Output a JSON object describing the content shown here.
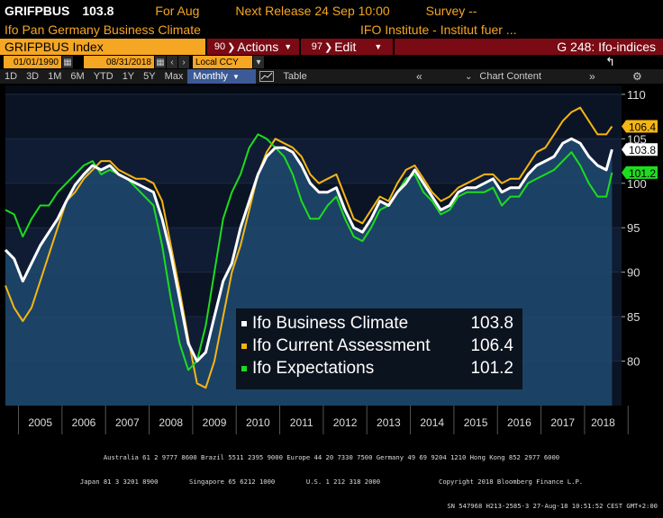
{
  "header": {
    "ticker": "GRIFPBUS",
    "last_value": "103.8",
    "for_label": "For Aug",
    "next_release": "Next Release 24 Sep 10:00",
    "survey": "Survey --",
    "title": "Ifo Pan Germany Business Climate",
    "source": "IFO Institute - Institut fuer ..."
  },
  "toolbar": {
    "security": "GRIFPBUS Index",
    "actions_label": "Actions",
    "actions_key": "90",
    "edit_label": "Edit",
    "edit_key": "97",
    "page_label": "G 248: Ifo-indices",
    "start_date": "01/01/1990",
    "end_date": "08/31/2018",
    "currency": "Local CCY",
    "ranges": [
      "1D",
      "3D",
      "1M",
      "6M",
      "YTD",
      "1Y",
      "5Y",
      "Max"
    ],
    "frequency": "Monthly",
    "table_label": "Table",
    "chart_content_label": "Chart Content"
  },
  "footer": {
    "line1": "Australia 61 2 9777 8600 Brazil 5511 2395 9000 Europe 44 20 7330 7500 Germany 49 69 9204 1210 Hong Kong 852 2977 6000",
    "line2": "Japan 81 3 3201 8900        Singapore 65 6212 1000        U.S. 1 212 318 2000               Copyright 2018 Bloomberg Finance L.P.",
    "line3": "SN 547968 H213-2585-3 27-Aug-18 10:51:52 CEST GMT+2:00"
  },
  "chart_data": {
    "type": "line",
    "title": "Ifo Pan Germany Business Climate",
    "xlim": [
      2004.7,
      2018.85
    ],
    "ylim": [
      75,
      111
    ],
    "yticks": [
      80,
      85,
      90,
      95,
      100,
      105,
      110
    ],
    "xtick_labels": [
      "2005",
      "2006",
      "2007",
      "2008",
      "2009",
      "2010",
      "2011",
      "2012",
      "2013",
      "2014",
      "2015",
      "2016",
      "2017",
      "2018"
    ],
    "series": [
      {
        "name": "Ifo Business Climate",
        "last": "103.8",
        "color": "#ffffff",
        "x": [
          2004.7,
          2004.9,
          2005.1,
          2005.3,
          2005.5,
          2005.7,
          2005.9,
          2006.1,
          2006.3,
          2006.5,
          2006.7,
          2006.9,
          2007.1,
          2007.3,
          2007.5,
          2007.7,
          2007.9,
          2008.1,
          2008.3,
          2008.5,
          2008.7,
          2008.9,
          2009.1,
          2009.3,
          2009.5,
          2009.7,
          2009.9,
          2010.1,
          2010.3,
          2010.5,
          2010.7,
          2010.9,
          2011.1,
          2011.3,
          2011.5,
          2011.7,
          2011.9,
          2012.1,
          2012.3,
          2012.5,
          2012.7,
          2012.9,
          2013.1,
          2013.3,
          2013.5,
          2013.7,
          2013.9,
          2014.1,
          2014.3,
          2014.5,
          2014.7,
          2014.9,
          2015.1,
          2015.3,
          2015.5,
          2015.7,
          2015.9,
          2016.1,
          2016.3,
          2016.5,
          2016.7,
          2016.9,
          2017.1,
          2017.3,
          2017.5,
          2017.7,
          2017.9,
          2018.1,
          2018.3,
          2018.5,
          2018.63
        ],
        "y": [
          92.5,
          91.5,
          89,
          91,
          93,
          94.5,
          96,
          98,
          99.8,
          101,
          102,
          101.5,
          102,
          101,
          100.5,
          100,
          99.5,
          99,
          96,
          92,
          87,
          82,
          80,
          81,
          85,
          89,
          91,
          95,
          98,
          101,
          103,
          104,
          104,
          103.5,
          102,
          100,
          99,
          99,
          99.5,
          97,
          95,
          94.5,
          96,
          98,
          97.5,
          99,
          100,
          101.5,
          100,
          98.5,
          97,
          97.5,
          99,
          99.5,
          99.5,
          100,
          100.5,
          99,
          99.5,
          99.5,
          101,
          102,
          102.5,
          103,
          104.5,
          105,
          104.5,
          103,
          102,
          101.5,
          103.8
        ]
      },
      {
        "name": "Ifo Current Assessment",
        "last": "106.4",
        "color": "#f5b514",
        "x": [
          2004.7,
          2004.9,
          2005.1,
          2005.3,
          2005.5,
          2005.7,
          2005.9,
          2006.1,
          2006.3,
          2006.5,
          2006.7,
          2006.9,
          2007.1,
          2007.3,
          2007.5,
          2007.7,
          2007.9,
          2008.1,
          2008.3,
          2008.5,
          2008.7,
          2008.9,
          2009.1,
          2009.3,
          2009.5,
          2009.7,
          2009.9,
          2010.1,
          2010.3,
          2010.5,
          2010.7,
          2010.9,
          2011.1,
          2011.3,
          2011.5,
          2011.7,
          2011.9,
          2012.1,
          2012.3,
          2012.5,
          2012.7,
          2012.9,
          2013.1,
          2013.3,
          2013.5,
          2013.7,
          2013.9,
          2014.1,
          2014.3,
          2014.5,
          2014.7,
          2014.9,
          2015.1,
          2015.3,
          2015.5,
          2015.7,
          2015.9,
          2016.1,
          2016.3,
          2016.5,
          2016.7,
          2016.9,
          2017.1,
          2017.3,
          2017.5,
          2017.7,
          2017.9,
          2018.1,
          2018.3,
          2018.5,
          2018.63
        ],
        "y": [
          88.5,
          86,
          84.5,
          86,
          89,
          92,
          95,
          98,
          99,
          100.5,
          101.5,
          102.5,
          102.5,
          101.5,
          101,
          100.5,
          100.5,
          100,
          98,
          93,
          88,
          82.5,
          77.5,
          77,
          80,
          85,
          90,
          93,
          97,
          101,
          103.5,
          105,
          104.5,
          104,
          103,
          101,
          100,
          100.5,
          101,
          98.5,
          96,
          95.5,
          97,
          98.5,
          98,
          100,
          101.5,
          102,
          100.5,
          99,
          98,
          98.5,
          99.5,
          100,
          100.5,
          101,
          101,
          100,
          100.5,
          100.5,
          102,
          103.5,
          104,
          105.5,
          107,
          108,
          108.5,
          107,
          105.5,
          105.5,
          106.4
        ]
      },
      {
        "name": "Ifo Expectations",
        "last": "101.2",
        "color": "#1ddc1d",
        "x": [
          2004.7,
          2004.9,
          2005.1,
          2005.3,
          2005.5,
          2005.7,
          2005.9,
          2006.1,
          2006.3,
          2006.5,
          2006.7,
          2006.9,
          2007.1,
          2007.3,
          2007.5,
          2007.7,
          2007.9,
          2008.1,
          2008.3,
          2008.5,
          2008.7,
          2008.9,
          2009.1,
          2009.3,
          2009.5,
          2009.7,
          2009.9,
          2010.1,
          2010.3,
          2010.5,
          2010.7,
          2010.9,
          2011.1,
          2011.3,
          2011.5,
          2011.7,
          2011.9,
          2012.1,
          2012.3,
          2012.5,
          2012.7,
          2012.9,
          2013.1,
          2013.3,
          2013.5,
          2013.7,
          2013.9,
          2014.1,
          2014.3,
          2014.5,
          2014.7,
          2014.9,
          2015.1,
          2015.3,
          2015.5,
          2015.7,
          2015.9,
          2016.1,
          2016.3,
          2016.5,
          2016.7,
          2016.9,
          2017.1,
          2017.3,
          2017.5,
          2017.7,
          2017.9,
          2018.1,
          2018.3,
          2018.5,
          2018.63
        ],
        "y": [
          97,
          96.5,
          94,
          96,
          97.5,
          97.5,
          99,
          100,
          101,
          102,
          102.5,
          101,
          101.5,
          101,
          100.5,
          99.5,
          98.5,
          97.5,
          93,
          87,
          82,
          79,
          80,
          84,
          90,
          96,
          99,
          101,
          104,
          105.5,
          105,
          104,
          103,
          101,
          98,
          96,
          96,
          97.5,
          98.5,
          96,
          94,
          93.5,
          95,
          97,
          97.5,
          99,
          100.5,
          101,
          99,
          98,
          96.5,
          97,
          98.5,
          99,
          99,
          99,
          99.5,
          97.5,
          98.5,
          98.5,
          100,
          100.5,
          101,
          101.5,
          102.5,
          103.5,
          102,
          100,
          98.5,
          98.5,
          101.2
        ]
      }
    ]
  }
}
